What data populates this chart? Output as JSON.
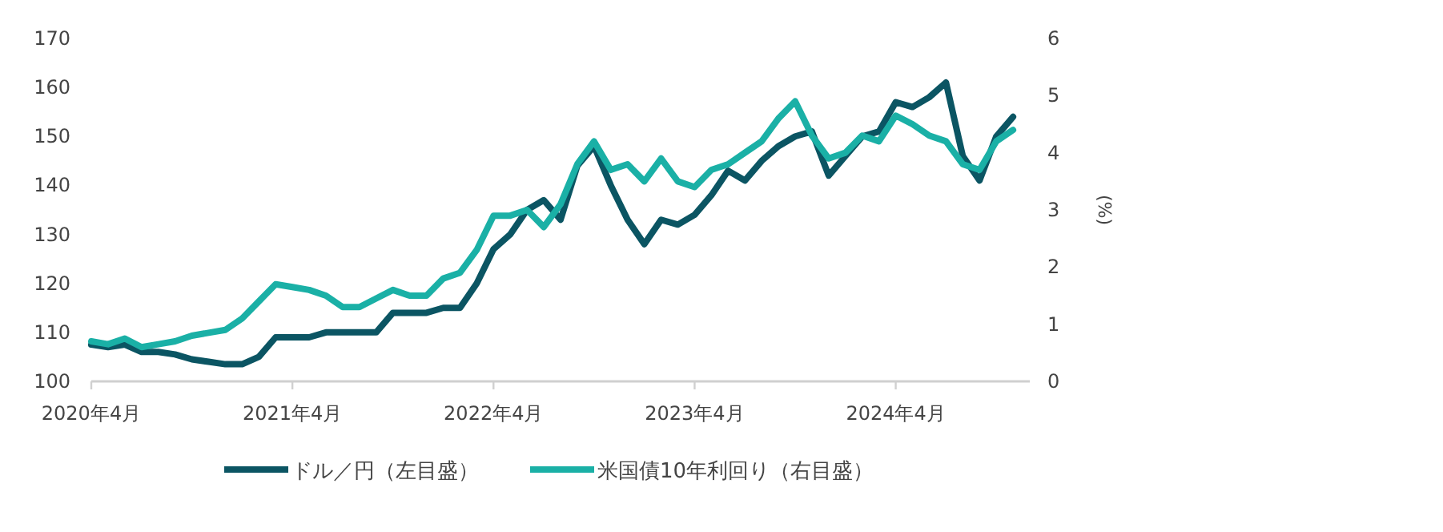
{
  "chart_data": {
    "type": "line",
    "y2label": "(%)",
    "legend": "bottom",
    "grid": false,
    "line_style": "solid",
    "x": [
      "2020-04",
      "2020-05",
      "2020-06",
      "2020-07",
      "2020-08",
      "2020-09",
      "2020-10",
      "2020-11",
      "2020-12",
      "2021-01",
      "2021-02",
      "2021-03",
      "2021-04",
      "2021-05",
      "2021-06",
      "2021-07",
      "2021-08",
      "2021-09",
      "2021-10",
      "2021-11",
      "2021-12",
      "2022-01",
      "2022-02",
      "2022-03",
      "2022-04",
      "2022-05",
      "2022-06",
      "2022-07",
      "2022-08",
      "2022-09",
      "2022-10",
      "2022-11",
      "2022-12",
      "2023-01",
      "2023-02",
      "2023-03",
      "2023-04",
      "2023-05",
      "2023-06",
      "2023-07",
      "2023-08",
      "2023-09",
      "2023-10",
      "2023-11",
      "2023-12",
      "2024-01",
      "2024-02",
      "2024-03",
      "2024-04",
      "2024-05",
      "2024-06",
      "2024-07",
      "2024-08",
      "2024-09",
      "2024-10",
      "2024-11"
    ],
    "xlim": [
      "2020-04",
      "2024-12"
    ],
    "xticks": [
      {
        "value": "2020-04",
        "label": "2020年4月"
      },
      {
        "value": "2021-04",
        "label": "2021年4月"
      },
      {
        "value": "2022-04",
        "label": "2022年4月"
      },
      {
        "value": "2023-04",
        "label": "2023年4月"
      },
      {
        "value": "2024-04",
        "label": "2024年4月"
      }
    ],
    "ylim": [
      100,
      170
    ],
    "yticks": [
      100,
      110,
      120,
      130,
      140,
      150,
      160,
      170
    ],
    "y2lim": [
      0,
      6
    ],
    "y2ticks": [
      0,
      1,
      2,
      3,
      4,
      5,
      6
    ],
    "series": [
      {
        "name": "ドル／円（左目盛）",
        "color": "#0b5563",
        "axis": "y",
        "values": [
          107.5,
          107,
          107.5,
          106,
          106,
          105.5,
          104.5,
          104,
          103.5,
          103.5,
          105,
          109,
          109,
          109,
          110,
          110,
          110,
          110,
          114,
          114,
          114,
          115,
          115,
          120,
          127,
          130,
          135,
          137,
          133,
          144,
          148,
          140,
          133,
          128,
          133,
          132,
          134,
          138,
          143,
          141,
          145,
          148,
          150,
          151,
          142,
          146,
          150,
          151,
          157,
          156,
          158,
          161,
          146,
          141,
          150,
          154
        ]
      },
      {
        "name": "米国債10年利回り（右目盛）",
        "color": "#1ab0a6",
        "axis": "y2",
        "values": [
          0.7,
          0.65,
          0.75,
          0.6,
          0.65,
          0.7,
          0.8,
          0.85,
          0.9,
          1.1,
          1.4,
          1.7,
          1.65,
          1.6,
          1.5,
          1.3,
          1.3,
          1.45,
          1.6,
          1.5,
          1.5,
          1.8,
          1.9,
          2.3,
          2.9,
          2.9,
          3.0,
          2.7,
          3.1,
          3.8,
          4.2,
          3.7,
          3.8,
          3.5,
          3.9,
          3.5,
          3.4,
          3.7,
          3.8,
          4.0,
          4.2,
          4.6,
          4.9,
          4.3,
          3.9,
          4.0,
          4.3,
          4.2,
          4.65,
          4.5,
          4.3,
          4.2,
          3.8,
          3.7,
          4.2,
          4.4
        ]
      }
    ]
  }
}
